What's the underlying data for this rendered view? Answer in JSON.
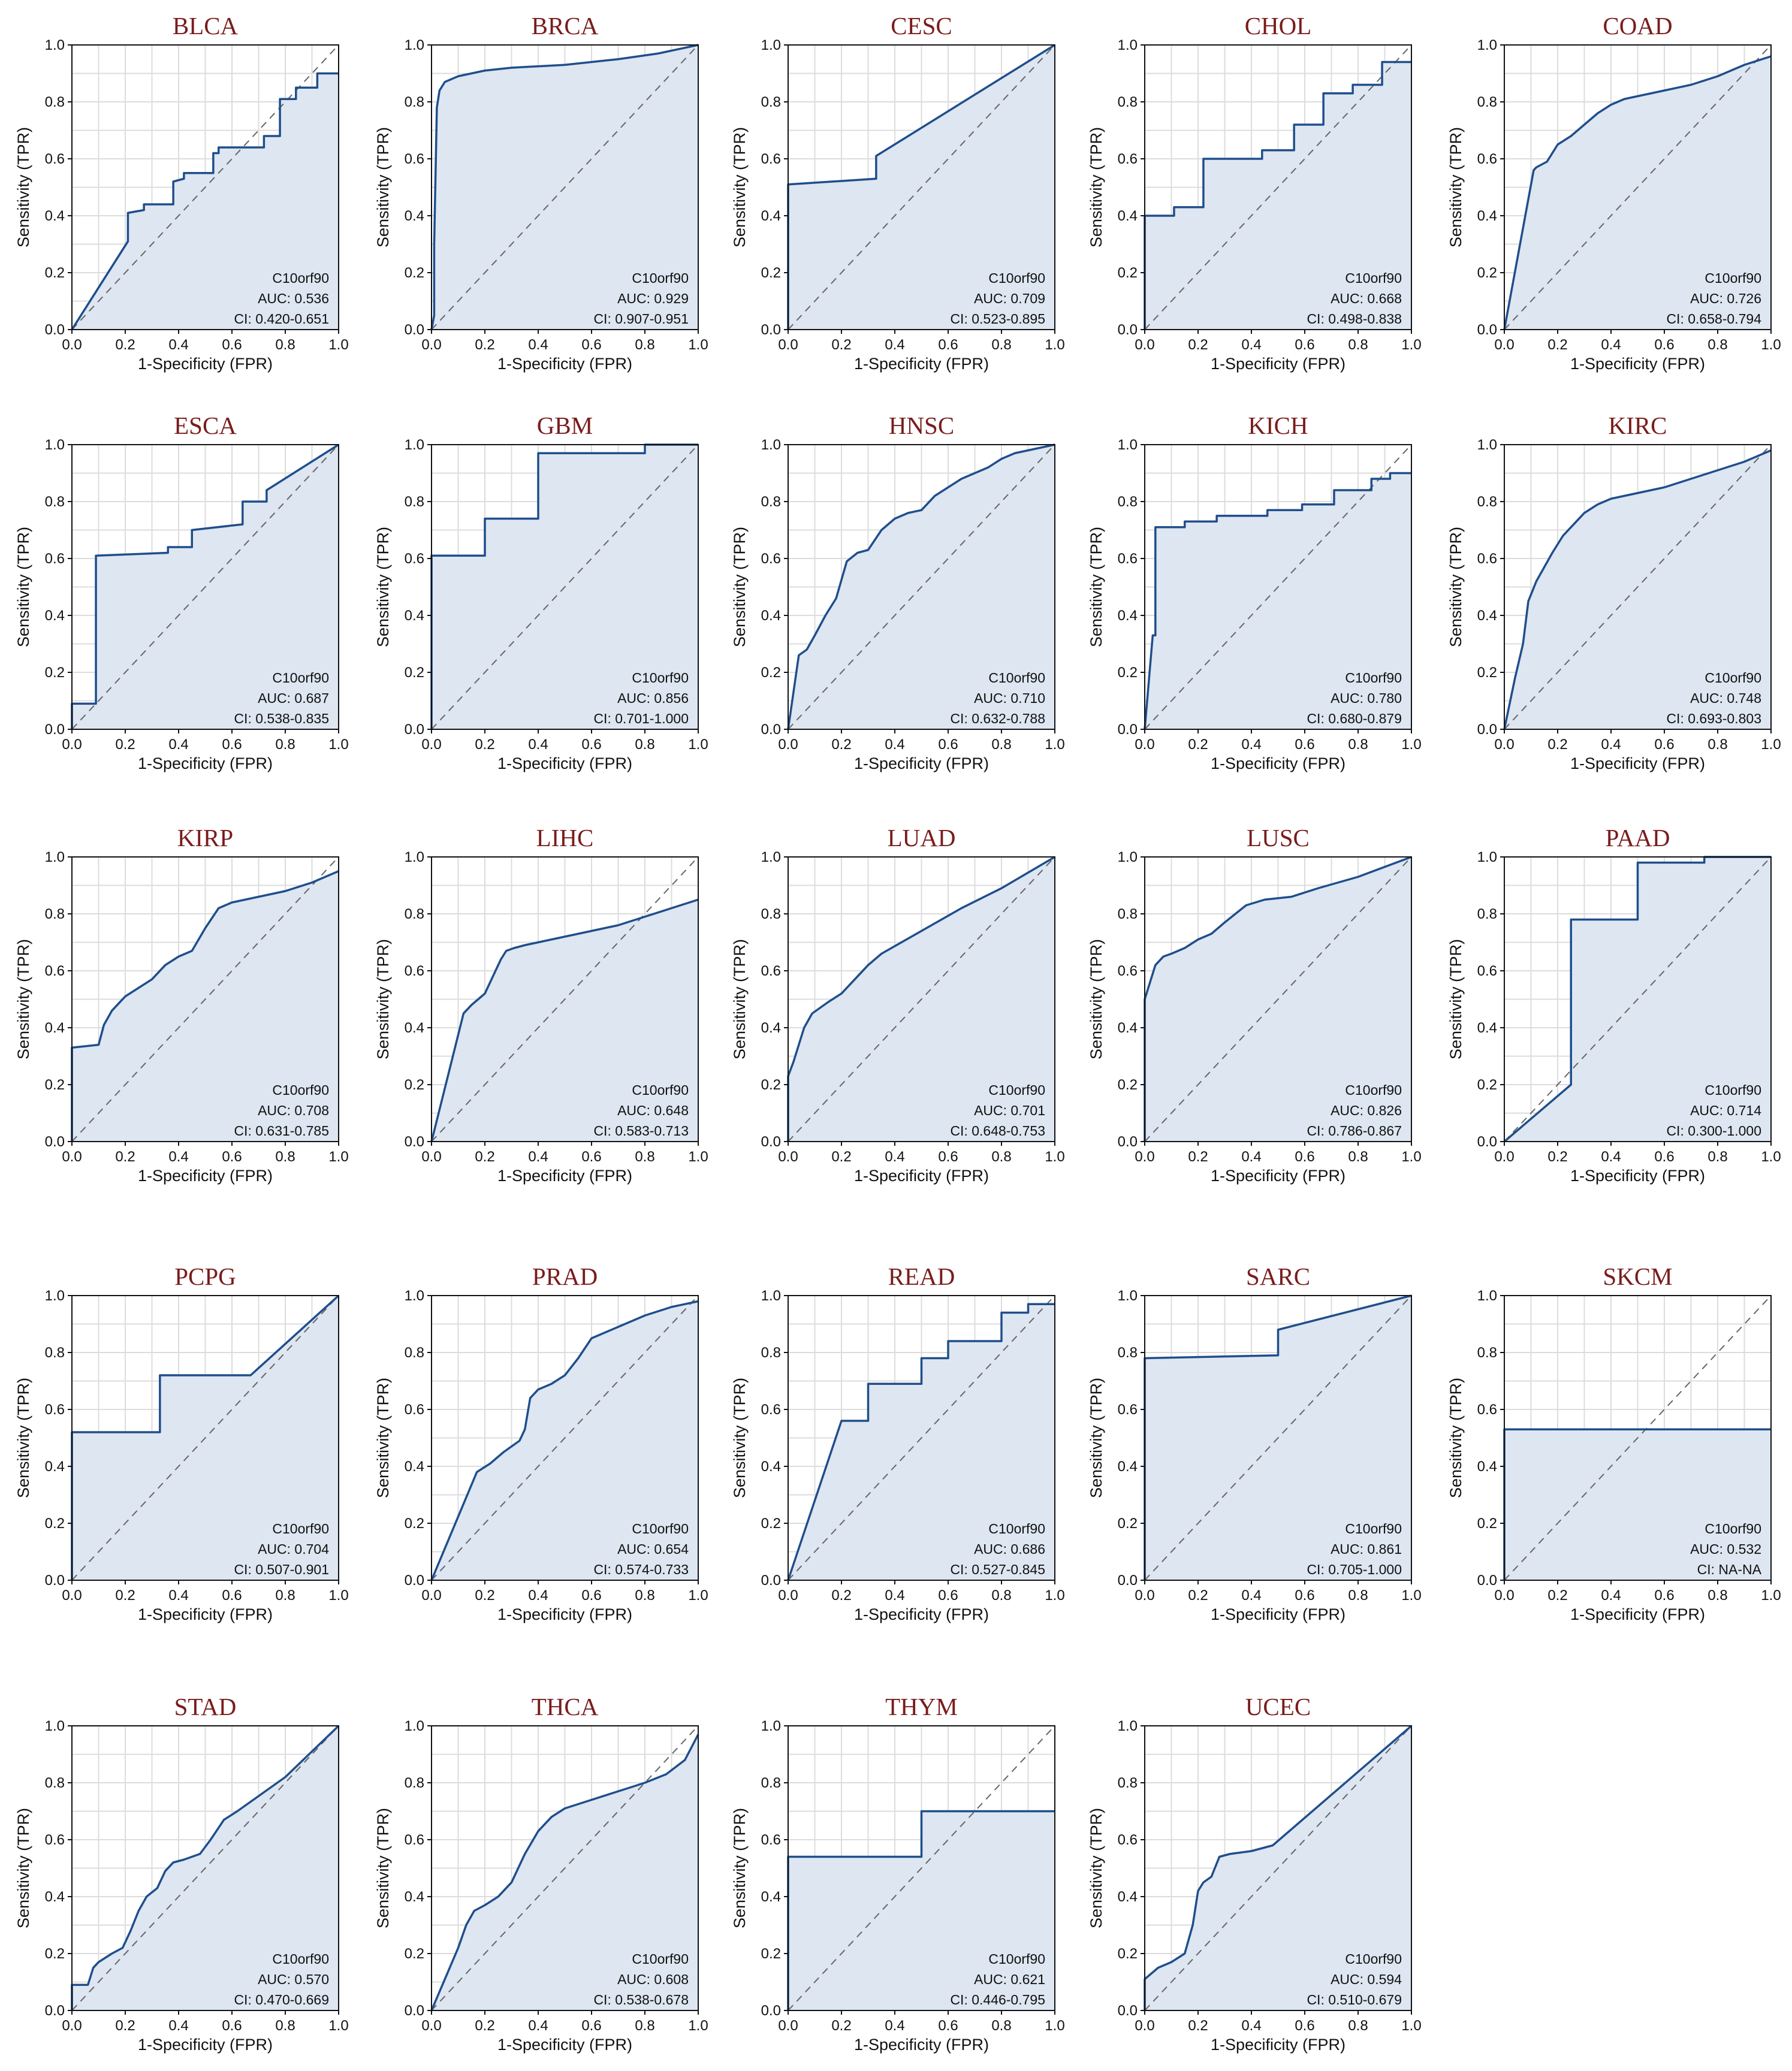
{
  "figure": {
    "xlabel": "1-Specificity (FPR)",
    "ylabel": "Sensitivity (TPR)",
    "ticks": [
      "0.0",
      "0.2",
      "0.4",
      "0.6",
      "0.8",
      "1.0"
    ],
    "colors": {
      "title": "#7a1c1c",
      "curve": "#1f4e8c",
      "fill": "#dde6f1",
      "diagonal": "#666666",
      "grid": "#dcdcdc"
    }
  },
  "chart_data": [
    {
      "type": "line",
      "title": "BLCA",
      "gene": "C10orf90",
      "auc": "AUC: 0.536",
      "ci": "CI: 0.420-0.651",
      "xlabel": "1-Specificity (FPR)",
      "ylabel": "Sensitivity (TPR)",
      "xlim": [
        0,
        1
      ],
      "ylim": [
        0,
        1
      ],
      "fpr": [
        0,
        0.21,
        0.21,
        0.27,
        0.27,
        0.38,
        0.38,
        0.42,
        0.42,
        0.53,
        0.53,
        0.55,
        0.55,
        0.72,
        0.72,
        0.78,
        0.78,
        0.84,
        0.84,
        0.92,
        0.92,
        1
      ],
      "tpr": [
        0,
        0.31,
        0.41,
        0.42,
        0.44,
        0.44,
        0.52,
        0.53,
        0.55,
        0.55,
        0.62,
        0.62,
        0.64,
        0.64,
        0.68,
        0.68,
        0.81,
        0.81,
        0.85,
        0.85,
        0.9,
        0.9
      ]
    },
    {
      "type": "line",
      "title": "BRCA",
      "gene": "C10orf90",
      "auc": "AUC: 0.929",
      "ci": "CI: 0.907-0.951",
      "xlabel": "1-Specificity (FPR)",
      "ylabel": "Sensitivity (TPR)",
      "xlim": [
        0,
        1
      ],
      "ylim": [
        0,
        1
      ],
      "fpr": [
        0,
        0.01,
        0.01,
        0.02,
        0.03,
        0.05,
        0.1,
        0.2,
        0.3,
        0.5,
        0.7,
        0.85,
        1
      ],
      "tpr": [
        0,
        0.05,
        0.3,
        0.78,
        0.84,
        0.87,
        0.89,
        0.91,
        0.92,
        0.93,
        0.95,
        0.97,
        1
      ]
    },
    {
      "type": "line",
      "title": "CESC",
      "gene": "C10orf90",
      "auc": "AUC: 0.709",
      "ci": "CI: 0.523-0.895",
      "xlabel": "1-Specificity (FPR)",
      "ylabel": "Sensitivity (TPR)",
      "xlim": [
        0,
        1
      ],
      "ylim": [
        0,
        1
      ],
      "fpr": [
        0,
        0,
        0.33,
        0.33,
        1
      ],
      "tpr": [
        0,
        0.51,
        0.53,
        0.61,
        1
      ]
    },
    {
      "type": "line",
      "title": "CHOL",
      "gene": "C10orf90",
      "auc": "AUC: 0.668",
      "ci": "CI: 0.498-0.838",
      "xlabel": "1-Specificity (FPR)",
      "ylabel": "Sensitivity (TPR)",
      "xlim": [
        0,
        1
      ],
      "ylim": [
        0,
        1
      ],
      "fpr": [
        0,
        0,
        0.11,
        0.11,
        0.22,
        0.22,
        0.44,
        0.44,
        0.56,
        0.56,
        0.67,
        0.67,
        0.78,
        0.78,
        0.89,
        0.89,
        1
      ],
      "tpr": [
        0,
        0.4,
        0.4,
        0.43,
        0.43,
        0.6,
        0.6,
        0.63,
        0.63,
        0.72,
        0.72,
        0.83,
        0.83,
        0.86,
        0.86,
        0.94,
        0.94
      ]
    },
    {
      "type": "line",
      "title": "COAD",
      "gene": "C10orf90",
      "auc": "AUC: 0.726",
      "ci": "CI: 0.658-0.794",
      "xlabel": "1-Specificity (FPR)",
      "ylabel": "Sensitivity (TPR)",
      "xlim": [
        0,
        1
      ],
      "ylim": [
        0,
        1
      ],
      "fpr": [
        0,
        0.11,
        0.12,
        0.14,
        0.16,
        0.18,
        0.2,
        0.25,
        0.3,
        0.35,
        0.4,
        0.45,
        0.5,
        0.6,
        0.7,
        0.8,
        0.9,
        1
      ],
      "tpr": [
        0,
        0.56,
        0.57,
        0.58,
        0.59,
        0.62,
        0.65,
        0.68,
        0.72,
        0.76,
        0.79,
        0.81,
        0.82,
        0.84,
        0.86,
        0.89,
        0.93,
        0.96
      ]
    },
    {
      "type": "line",
      "title": "ESCA",
      "gene": "C10orf90",
      "auc": "AUC: 0.687",
      "ci": "CI: 0.538-0.835",
      "xlabel": "1-Specificity (FPR)",
      "ylabel": "Sensitivity (TPR)",
      "xlim": [
        0,
        1
      ],
      "ylim": [
        0,
        1
      ],
      "fpr": [
        0,
        0,
        0.09,
        0.09,
        0.36,
        0.36,
        0.45,
        0.45,
        0.64,
        0.64,
        0.73,
        0.73,
        1
      ],
      "tpr": [
        0,
        0.09,
        0.09,
        0.61,
        0.62,
        0.64,
        0.64,
        0.7,
        0.72,
        0.8,
        0.8,
        0.84,
        1
      ]
    },
    {
      "type": "line",
      "title": "GBM",
      "gene": "C10orf90",
      "auc": "AUC: 0.856",
      "ci": "CI: 0.701-1.000",
      "xlabel": "1-Specificity (FPR)",
      "ylabel": "Sensitivity (TPR)",
      "xlim": [
        0,
        1
      ],
      "ylim": [
        0,
        1
      ],
      "fpr": [
        0,
        0,
        0.2,
        0.2,
        0.4,
        0.4,
        0.8,
        0.8,
        1
      ],
      "tpr": [
        0,
        0.61,
        0.61,
        0.74,
        0.74,
        0.97,
        0.97,
        1,
        1
      ]
    },
    {
      "type": "line",
      "title": "HNSC",
      "gene": "C10orf90",
      "auc": "AUC: 0.710",
      "ci": "CI: 0.632-0.788",
      "xlabel": "1-Specificity (FPR)",
      "ylabel": "Sensitivity (TPR)",
      "xlim": [
        0,
        1
      ],
      "ylim": [
        0,
        1
      ],
      "fpr": [
        0,
        0.04,
        0.07,
        0.1,
        0.14,
        0.18,
        0.22,
        0.26,
        0.3,
        0.35,
        0.4,
        0.45,
        0.5,
        0.55,
        0.6,
        0.65,
        0.7,
        0.75,
        0.8,
        0.85,
        0.9,
        0.95,
        1
      ],
      "tpr": [
        0,
        0.26,
        0.28,
        0.33,
        0.4,
        0.46,
        0.59,
        0.62,
        0.63,
        0.7,
        0.74,
        0.76,
        0.77,
        0.82,
        0.85,
        0.88,
        0.9,
        0.92,
        0.95,
        0.97,
        0.98,
        0.99,
        1
      ]
    },
    {
      "type": "line",
      "title": "KICH",
      "gene": "C10orf90",
      "auc": "AUC: 0.780",
      "ci": "CI: 0.680-0.879",
      "xlabel": "1-Specificity (FPR)",
      "ylabel": "Sensitivity (TPR)",
      "xlim": [
        0,
        1
      ],
      "ylim": [
        0,
        1
      ],
      "fpr": [
        0,
        0.03,
        0.04,
        0.04,
        0.15,
        0.15,
        0.27,
        0.27,
        0.46,
        0.46,
        0.59,
        0.59,
        0.71,
        0.71,
        0.85,
        0.85,
        0.92,
        0.92,
        1
      ],
      "tpr": [
        0,
        0.33,
        0.33,
        0.71,
        0.71,
        0.73,
        0.73,
        0.75,
        0.75,
        0.77,
        0.77,
        0.79,
        0.79,
        0.84,
        0.84,
        0.88,
        0.88,
        0.9,
        0.9
      ]
    },
    {
      "type": "line",
      "title": "KIRC",
      "gene": "C10orf90",
      "auc": "AUC: 0.748",
      "ci": "CI: 0.693-0.803",
      "xlabel": "1-Specificity (FPR)",
      "ylabel": "Sensitivity (TPR)",
      "xlim": [
        0,
        1
      ],
      "ylim": [
        0,
        1
      ],
      "fpr": [
        0,
        0.04,
        0.07,
        0.09,
        0.12,
        0.15,
        0.18,
        0.22,
        0.26,
        0.3,
        0.35,
        0.4,
        0.45,
        0.5,
        0.6,
        0.7,
        0.8,
        0.9,
        1
      ],
      "tpr": [
        0,
        0.18,
        0.3,
        0.45,
        0.52,
        0.57,
        0.62,
        0.68,
        0.72,
        0.76,
        0.79,
        0.81,
        0.82,
        0.83,
        0.85,
        0.88,
        0.91,
        0.94,
        0.98
      ]
    },
    {
      "type": "line",
      "title": "KIRP",
      "gene": "C10orf90",
      "auc": "AUC: 0.708",
      "ci": "CI: 0.631-0.785",
      "xlabel": "1-Specificity (FPR)",
      "ylabel": "Sensitivity (TPR)",
      "xlim": [
        0,
        1
      ],
      "ylim": [
        0,
        1
      ],
      "fpr": [
        0,
        0,
        0.1,
        0.12,
        0.15,
        0.2,
        0.25,
        0.3,
        0.35,
        0.4,
        0.45,
        0.5,
        0.55,
        0.6,
        0.7,
        0.8,
        0.9,
        1
      ],
      "tpr": [
        0,
        0.33,
        0.34,
        0.41,
        0.46,
        0.51,
        0.54,
        0.57,
        0.62,
        0.65,
        0.67,
        0.75,
        0.82,
        0.84,
        0.86,
        0.88,
        0.91,
        0.95
      ]
    },
    {
      "type": "line",
      "title": "LIHC",
      "gene": "C10orf90",
      "auc": "AUC: 0.648",
      "ci": "CI: 0.583-0.713",
      "xlabel": "1-Specificity (FPR)",
      "ylabel": "Sensitivity (TPR)",
      "xlim": [
        0,
        1
      ],
      "ylim": [
        0,
        1
      ],
      "fpr": [
        0,
        0.12,
        0.15,
        0.2,
        0.23,
        0.26,
        0.28,
        0.31,
        0.35,
        0.4,
        0.5,
        0.6,
        0.7,
        0.8,
        0.9,
        1
      ],
      "tpr": [
        0,
        0.45,
        0.48,
        0.52,
        0.58,
        0.64,
        0.67,
        0.68,
        0.69,
        0.7,
        0.72,
        0.74,
        0.76,
        0.79,
        0.82,
        0.85
      ]
    },
    {
      "type": "line",
      "title": "LUAD",
      "gene": "C10orf90",
      "auc": "AUC: 0.701",
      "ci": "CI: 0.648-0.753",
      "xlabel": "1-Specificity (FPR)",
      "ylabel": "Sensitivity (TPR)",
      "xlim": [
        0,
        1
      ],
      "ylim": [
        0,
        1
      ],
      "fpr": [
        0,
        0,
        0.02,
        0.04,
        0.06,
        0.09,
        0.12,
        0.15,
        0.2,
        0.25,
        0.3,
        0.35,
        0.5,
        0.65,
        0.8,
        1
      ],
      "tpr": [
        0,
        0.23,
        0.28,
        0.34,
        0.4,
        0.45,
        0.47,
        0.49,
        0.52,
        0.57,
        0.62,
        0.66,
        0.74,
        0.82,
        0.89,
        1
      ]
    },
    {
      "type": "line",
      "title": "LUSC",
      "gene": "C10orf90",
      "auc": "AUC: 0.826",
      "ci": "CI: 0.786-0.867",
      "xlabel": "1-Specificity (FPR)",
      "ylabel": "Sensitivity (TPR)",
      "xlim": [
        0,
        1
      ],
      "ylim": [
        0,
        1
      ],
      "fpr": [
        0,
        0,
        0.02,
        0.04,
        0.07,
        0.1,
        0.15,
        0.2,
        0.25,
        0.3,
        0.38,
        0.45,
        0.55,
        0.65,
        0.8,
        1
      ],
      "tpr": [
        0,
        0.5,
        0.56,
        0.62,
        0.65,
        0.66,
        0.68,
        0.71,
        0.73,
        0.77,
        0.83,
        0.85,
        0.86,
        0.89,
        0.93,
        1
      ]
    },
    {
      "type": "line",
      "title": "PAAD",
      "gene": "C10orf90",
      "auc": "AUC: 0.714",
      "ci": "CI: 0.300-1.000",
      "xlabel": "1-Specificity (FPR)",
      "ylabel": "Sensitivity (TPR)",
      "xlim": [
        0,
        1
      ],
      "ylim": [
        0,
        1
      ],
      "fpr": [
        0,
        0.25,
        0.25,
        0.5,
        0.5,
        0.75,
        0.75,
        1
      ],
      "tpr": [
        0,
        0.2,
        0.78,
        0.78,
        0.98,
        0.98,
        1,
        1
      ]
    },
    {
      "type": "line",
      "title": "PCPG",
      "gene": "C10orf90",
      "auc": "AUC: 0.704",
      "ci": "CI: 0.507-0.901",
      "xlabel": "1-Specificity (FPR)",
      "ylabel": "Sensitivity (TPR)",
      "xlim": [
        0,
        1
      ],
      "ylim": [
        0,
        1
      ],
      "fpr": [
        0,
        0,
        0.33,
        0.33,
        0.67,
        1
      ],
      "tpr": [
        0,
        0.52,
        0.52,
        0.72,
        0.72,
        1
      ]
    },
    {
      "type": "line",
      "title": "PRAD",
      "gene": "C10orf90",
      "auc": "AUC: 0.654",
      "ci": "CI: 0.574-0.733",
      "xlabel": "1-Specificity (FPR)",
      "ylabel": "Sensitivity (TPR)",
      "xlim": [
        0,
        1
      ],
      "ylim": [
        0,
        1
      ],
      "fpr": [
        0,
        0.17,
        0.22,
        0.27,
        0.33,
        0.35,
        0.37,
        0.4,
        0.45,
        0.5,
        0.55,
        0.6,
        0.65,
        0.7,
        0.75,
        0.8,
        0.9,
        1
      ],
      "tpr": [
        0,
        0.38,
        0.41,
        0.45,
        0.49,
        0.53,
        0.64,
        0.67,
        0.69,
        0.72,
        0.78,
        0.85,
        0.87,
        0.89,
        0.91,
        0.93,
        0.96,
        0.98
      ]
    },
    {
      "type": "line",
      "title": "READ",
      "gene": "C10orf90",
      "auc": "AUC: 0.686",
      "ci": "CI: 0.527-0.845",
      "xlabel": "1-Specificity (FPR)",
      "ylabel": "Sensitivity (TPR)",
      "xlim": [
        0,
        1
      ],
      "ylim": [
        0,
        1
      ],
      "fpr": [
        0,
        0.2,
        0.3,
        0.3,
        0.5,
        0.5,
        0.6,
        0.6,
        0.8,
        0.8,
        0.9,
        0.9,
        1
      ],
      "tpr": [
        0,
        0.56,
        0.56,
        0.69,
        0.69,
        0.78,
        0.78,
        0.84,
        0.84,
        0.94,
        0.94,
        0.97,
        0.97
      ]
    },
    {
      "type": "line",
      "title": "SARC",
      "gene": "C10orf90",
      "auc": "AUC: 0.861",
      "ci": "CI: 0.705-1.000",
      "xlabel": "1-Specificity (FPR)",
      "ylabel": "Sensitivity (TPR)",
      "xlim": [
        0,
        1
      ],
      "ylim": [
        0,
        1
      ],
      "fpr": [
        0,
        0,
        0.5,
        0.5,
        1
      ],
      "tpr": [
        0,
        0.78,
        0.79,
        0.88,
        1
      ]
    },
    {
      "type": "line",
      "title": "SKCM",
      "gene": "C10orf90",
      "auc": "AUC: 0.532",
      "ci": "CI: NA-NA",
      "xlabel": "1-Specificity (FPR)",
      "ylabel": "Sensitivity (TPR)",
      "xlim": [
        0,
        1
      ],
      "ylim": [
        0,
        1
      ],
      "fpr": [
        0,
        0,
        1
      ],
      "tpr": [
        0,
        0.53,
        0.53
      ]
    },
    {
      "type": "line",
      "title": "STAD",
      "gene": "C10orf90",
      "auc": "AUC: 0.570",
      "ci": "CI: 0.470-0.669",
      "xlabel": "1-Specificity (FPR)",
      "ylabel": "Sensitivity (TPR)",
      "xlim": [
        0,
        1
      ],
      "ylim": [
        0,
        1
      ],
      "fpr": [
        0,
        0,
        0.06,
        0.08,
        0.1,
        0.15,
        0.19,
        0.22,
        0.25,
        0.28,
        0.32,
        0.35,
        0.38,
        0.42,
        0.48,
        0.52,
        0.57,
        0.62,
        0.8,
        1
      ],
      "tpr": [
        0,
        0.09,
        0.09,
        0.15,
        0.17,
        0.2,
        0.22,
        0.28,
        0.35,
        0.4,
        0.43,
        0.49,
        0.52,
        0.53,
        0.55,
        0.6,
        0.67,
        0.7,
        0.82,
        1
      ]
    },
    {
      "type": "line",
      "title": "THCA",
      "gene": "C10orf90",
      "auc": "AUC: 0.608",
      "ci": "CI: 0.538-0.678",
      "xlabel": "1-Specificity (FPR)",
      "ylabel": "Sensitivity (TPR)",
      "xlim": [
        0,
        1
      ],
      "ylim": [
        0,
        1
      ],
      "fpr": [
        0,
        0.1,
        0.13,
        0.16,
        0.2,
        0.25,
        0.3,
        0.35,
        0.4,
        0.45,
        0.5,
        0.6,
        0.7,
        0.8,
        0.88,
        0.95,
        1
      ],
      "tpr": [
        0,
        0.22,
        0.3,
        0.35,
        0.37,
        0.4,
        0.45,
        0.55,
        0.63,
        0.68,
        0.71,
        0.74,
        0.77,
        0.8,
        0.83,
        0.88,
        0.97
      ]
    },
    {
      "type": "line",
      "title": "THYM",
      "gene": "C10orf90",
      "auc": "AUC: 0.621",
      "ci": "CI: 0.446-0.795",
      "xlabel": "1-Specificity (FPR)",
      "ylabel": "Sensitivity (TPR)",
      "xlim": [
        0,
        1
      ],
      "ylim": [
        0,
        1
      ],
      "fpr": [
        0,
        0,
        0.5,
        0.5,
        1
      ],
      "tpr": [
        0,
        0.54,
        0.54,
        0.7,
        0.7
      ]
    },
    {
      "type": "line",
      "title": "UCEC",
      "gene": "C10orf90",
      "auc": "AUC: 0.594",
      "ci": "CI: 0.510-0.679",
      "xlabel": "1-Specificity (FPR)",
      "ylabel": "Sensitivity (TPR)",
      "xlim": [
        0,
        1
      ],
      "ylim": [
        0,
        1
      ],
      "fpr": [
        0,
        0,
        0.05,
        0.1,
        0.15,
        0.18,
        0.2,
        0.22,
        0.25,
        0.28,
        0.32,
        0.4,
        0.48,
        1
      ],
      "tpr": [
        0,
        0.11,
        0.15,
        0.17,
        0.2,
        0.3,
        0.42,
        0.45,
        0.47,
        0.54,
        0.55,
        0.56,
        0.58,
        1
      ]
    }
  ]
}
